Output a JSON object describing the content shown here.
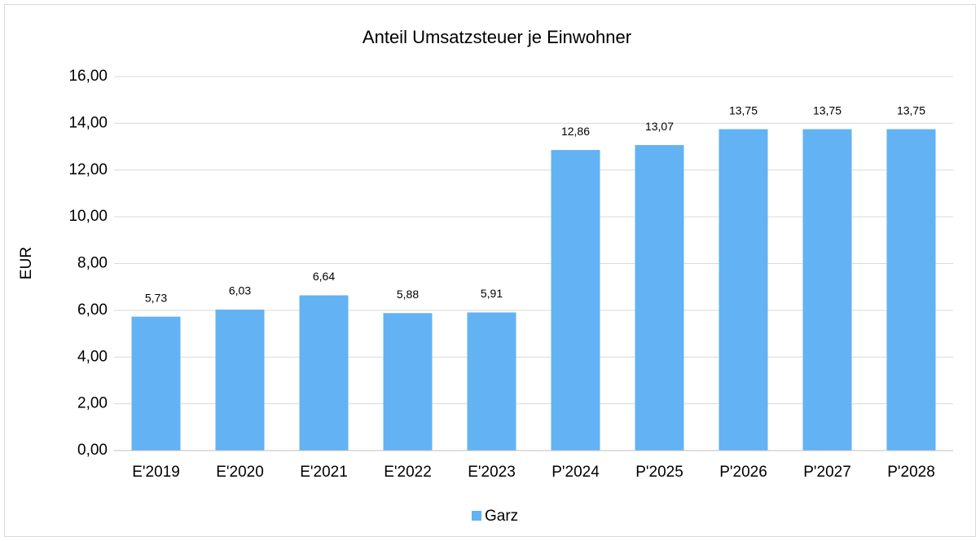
{
  "chart_data": {
    "type": "bar",
    "title": "Anteil Umsatzsteuer je Einwohner",
    "y_label": "EUR",
    "categories": [
      "E'2019",
      "E'2020",
      "E'2021",
      "E'2022",
      "E'2023",
      "P'2024",
      "P'2025",
      "P'2026",
      "P'2027",
      "P'2028"
    ],
    "series": [
      {
        "name": "Garz",
        "color": "#63b2f3",
        "values": [
          5.73,
          6.03,
          6.64,
          5.88,
          5.91,
          12.86,
          13.07,
          13.75,
          13.75,
          13.75
        ],
        "value_labels": [
          "5,73",
          "6,03",
          "6,64",
          "5,88",
          "5,91",
          "12,86",
          "13,07",
          "13,75",
          "13,75",
          "13,75"
        ]
      }
    ],
    "ylim": [
      0,
      16
    ],
    "yticks": [
      {
        "value": 0,
        "label": "0,00"
      },
      {
        "value": 2,
        "label": "2,00"
      },
      {
        "value": 4,
        "label": "4,00"
      },
      {
        "value": 6,
        "label": "6,00"
      },
      {
        "value": 8,
        "label": "8,00"
      },
      {
        "value": 10,
        "label": "10,00"
      },
      {
        "value": 12,
        "label": "12,00"
      },
      {
        "value": 14,
        "label": "14,00"
      },
      {
        "value": 16,
        "label": "16,00"
      }
    ],
    "grid": true,
    "legend": "bottom"
  }
}
